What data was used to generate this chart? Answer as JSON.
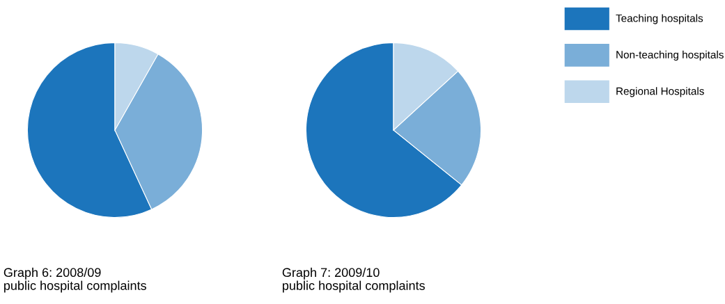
{
  "chart_data": [
    {
      "type": "pie",
      "title": "Graph 6: 2008/09\npublic hospital complaints",
      "categories": [
        "Teaching hospitals",
        "Non-teaching hospitals",
        "Regional Hospitals"
      ],
      "values": [
        56.9,
        34.9,
        8.2
      ],
      "colors": [
        "#1c75bc",
        "#7aaed8",
        "#bdd7ec"
      ],
      "legend": "top right"
    },
    {
      "type": "pie",
      "title": "Graph 7: 2009/10\npublic hospital complaints",
      "categories": [
        null,
        null,
        null
      ],
      "values": [
        64.2,
        22.6,
        13.2
      ],
      "colors": [
        "#1c75bc",
        "#7aaed8",
        "#bdd7ec"
      ],
      "legend": false
    }
  ]
}
